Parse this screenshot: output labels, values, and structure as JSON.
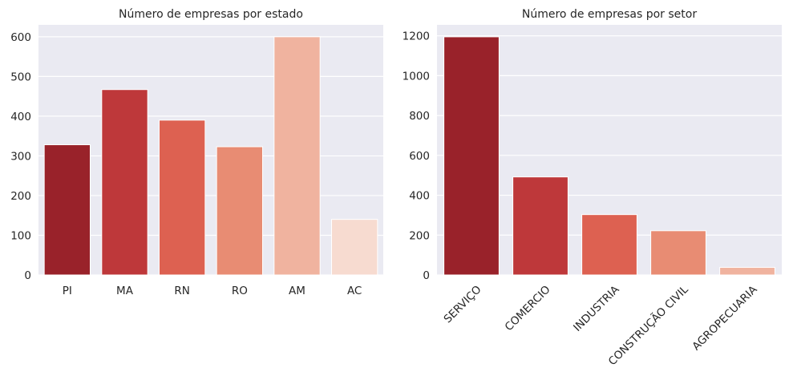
{
  "chart_data": [
    {
      "type": "bar",
      "title": "Número de empresas por estado",
      "xlabel": "",
      "ylabel": "",
      "categories": [
        "PI",
        "MA",
        "RN",
        "RO",
        "AM",
        "AC"
      ],
      "values": [
        328,
        467,
        390,
        323,
        600,
        140
      ],
      "colors": [
        "#99222a",
        "#be383a",
        "#dd6151",
        "#e88c73",
        "#f0b39f",
        "#f7dbd0"
      ],
      "ylim": [
        0,
        630
      ],
      "yticks": [
        0,
        100,
        200,
        300,
        400,
        500,
        600
      ],
      "grid": true,
      "x_tick_rotation": 0
    },
    {
      "type": "bar",
      "title": "Número de empresas por setor",
      "xlabel": "",
      "ylabel": "",
      "categories": [
        "SERVIÇO",
        "COMERCIO",
        "INDUSTRIA",
        "CONSTRUÇÃO CIVIL",
        "AGROPECUARIA"
      ],
      "values": [
        1195,
        492,
        303,
        222,
        38
      ],
      "colors": [
        "#99222a",
        "#be383a",
        "#dd6151",
        "#e88c73",
        "#f0b39f"
      ],
      "ylim": [
        0,
        1255
      ],
      "yticks": [
        0,
        200,
        400,
        600,
        800,
        1000,
        1200
      ],
      "grid": true,
      "x_tick_rotation": -45
    }
  ]
}
